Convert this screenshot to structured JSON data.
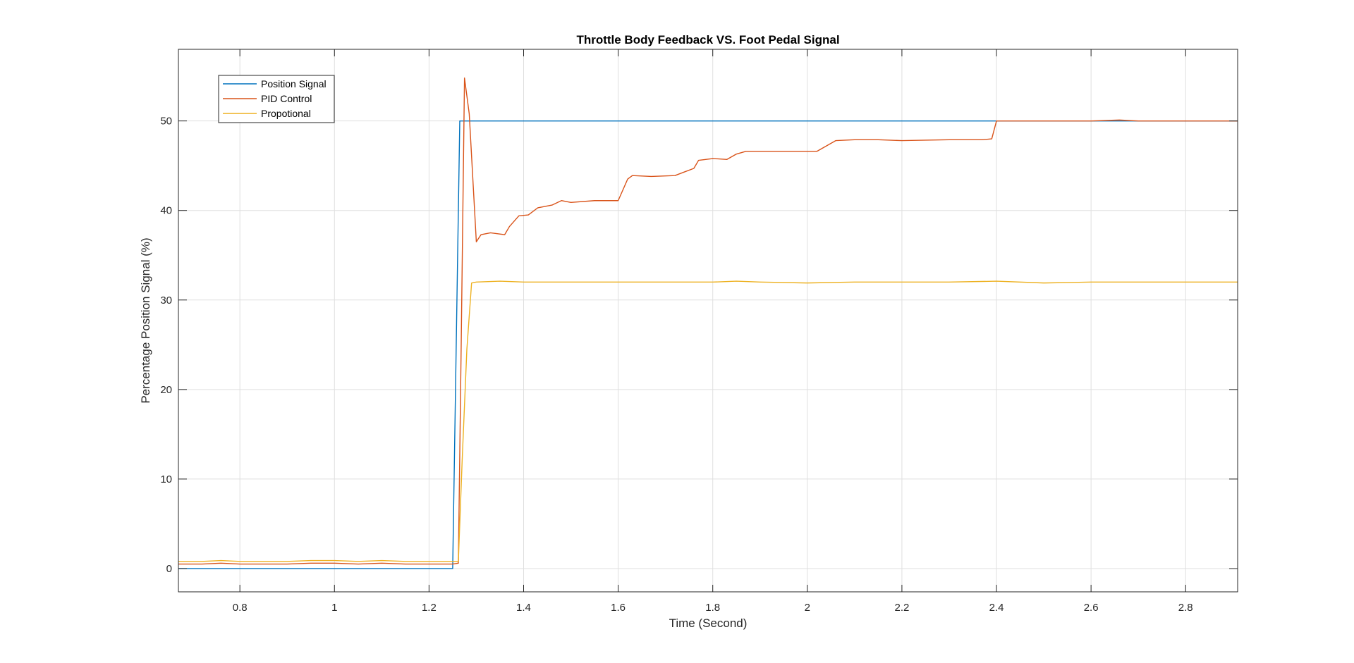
{
  "chart_data": {
    "type": "line",
    "title": "Throttle Body Feedback VS. Foot Pedal Signal",
    "xlabel": "Time (Second)",
    "ylabel": "Percentage Position Signal (%)",
    "xlim": [
      0.67,
      2.91
    ],
    "ylim": [
      -2.6,
      58
    ],
    "xticks": [
      0.8,
      1,
      1.2,
      1.4,
      1.6,
      1.8,
      2,
      2.2,
      2.4,
      2.6,
      2.8
    ],
    "xtick_labels": [
      "0.8",
      "1",
      "1.2",
      "1.4",
      "1.6",
      "1.8",
      "2",
      "2.2",
      "2.4",
      "2.6",
      "2.8"
    ],
    "yticks": [
      0,
      10,
      20,
      30,
      40,
      50
    ],
    "ytick_labels": [
      "0",
      "10",
      "20",
      "30",
      "40",
      "50"
    ],
    "grid": true,
    "legend_position": "top-left",
    "series": [
      {
        "name": "Position Signal",
        "color": "#0072BD",
        "points": [
          [
            0.67,
            0
          ],
          [
            1.25,
            0
          ],
          [
            1.265,
            50
          ],
          [
            2.91,
            50
          ]
        ]
      },
      {
        "name": "PID Control",
        "color": "#D95319",
        "points": [
          [
            0.67,
            0.5
          ],
          [
            0.72,
            0.5
          ],
          [
            0.76,
            0.6
          ],
          [
            0.8,
            0.5
          ],
          [
            0.85,
            0.5
          ],
          [
            0.9,
            0.5
          ],
          [
            0.95,
            0.6
          ],
          [
            1.0,
            0.6
          ],
          [
            1.05,
            0.5
          ],
          [
            1.1,
            0.6
          ],
          [
            1.15,
            0.5
          ],
          [
            1.2,
            0.5
          ],
          [
            1.25,
            0.5
          ],
          [
            1.262,
            0.6
          ],
          [
            1.268,
            25
          ],
          [
            1.275,
            54.8
          ],
          [
            1.285,
            50.8
          ],
          [
            1.3,
            36.5
          ],
          [
            1.31,
            37.3
          ],
          [
            1.33,
            37.5
          ],
          [
            1.36,
            37.3
          ],
          [
            1.37,
            38.2
          ],
          [
            1.39,
            39.4
          ],
          [
            1.41,
            39.5
          ],
          [
            1.43,
            40.3
          ],
          [
            1.46,
            40.6
          ],
          [
            1.48,
            41.1
          ],
          [
            1.5,
            40.9
          ],
          [
            1.55,
            41.1
          ],
          [
            1.6,
            41.1
          ],
          [
            1.62,
            43.5
          ],
          [
            1.63,
            43.9
          ],
          [
            1.67,
            43.8
          ],
          [
            1.72,
            43.9
          ],
          [
            1.74,
            44.3
          ],
          [
            1.76,
            44.7
          ],
          [
            1.77,
            45.6
          ],
          [
            1.8,
            45.8
          ],
          [
            1.83,
            45.7
          ],
          [
            1.85,
            46.3
          ],
          [
            1.87,
            46.6
          ],
          [
            1.9,
            46.6
          ],
          [
            1.95,
            46.6
          ],
          [
            2.02,
            46.6
          ],
          [
            2.04,
            47.2
          ],
          [
            2.06,
            47.8
          ],
          [
            2.1,
            47.9
          ],
          [
            2.15,
            47.9
          ],
          [
            2.2,
            47.8
          ],
          [
            2.3,
            47.9
          ],
          [
            2.37,
            47.9
          ],
          [
            2.39,
            48.0
          ],
          [
            2.4,
            50.0
          ],
          [
            2.45,
            50.0
          ],
          [
            2.5,
            50.0
          ],
          [
            2.55,
            50.0
          ],
          [
            2.6,
            50.0
          ],
          [
            2.66,
            50.1
          ],
          [
            2.7,
            50.0
          ],
          [
            2.8,
            50.0
          ],
          [
            2.91,
            50.0
          ]
        ]
      },
      {
        "name": "Propotional",
        "color": "#EDB120",
        "points": [
          [
            0.67,
            0.8
          ],
          [
            0.72,
            0.8
          ],
          [
            0.76,
            0.9
          ],
          [
            0.8,
            0.8
          ],
          [
            0.85,
            0.8
          ],
          [
            0.9,
            0.8
          ],
          [
            0.95,
            0.9
          ],
          [
            1.0,
            0.9
          ],
          [
            1.05,
            0.8
          ],
          [
            1.1,
            0.9
          ],
          [
            1.15,
            0.8
          ],
          [
            1.2,
            0.8
          ],
          [
            1.25,
            0.8
          ],
          [
            1.262,
            0.8
          ],
          [
            1.27,
            12
          ],
          [
            1.28,
            24.5
          ],
          [
            1.29,
            31.9
          ],
          [
            1.3,
            32.0
          ],
          [
            1.35,
            32.1
          ],
          [
            1.4,
            32.0
          ],
          [
            1.5,
            32.0
          ],
          [
            1.6,
            32.0
          ],
          [
            1.7,
            32.0
          ],
          [
            1.8,
            32.0
          ],
          [
            1.85,
            32.1
          ],
          [
            1.9,
            32.0
          ],
          [
            2.0,
            31.9
          ],
          [
            2.1,
            32.0
          ],
          [
            2.2,
            32.0
          ],
          [
            2.3,
            32.0
          ],
          [
            2.4,
            32.1
          ],
          [
            2.5,
            31.9
          ],
          [
            2.6,
            32.0
          ],
          [
            2.7,
            32.0
          ],
          [
            2.8,
            32.0
          ],
          [
            2.91,
            32.0
          ]
        ]
      }
    ]
  }
}
